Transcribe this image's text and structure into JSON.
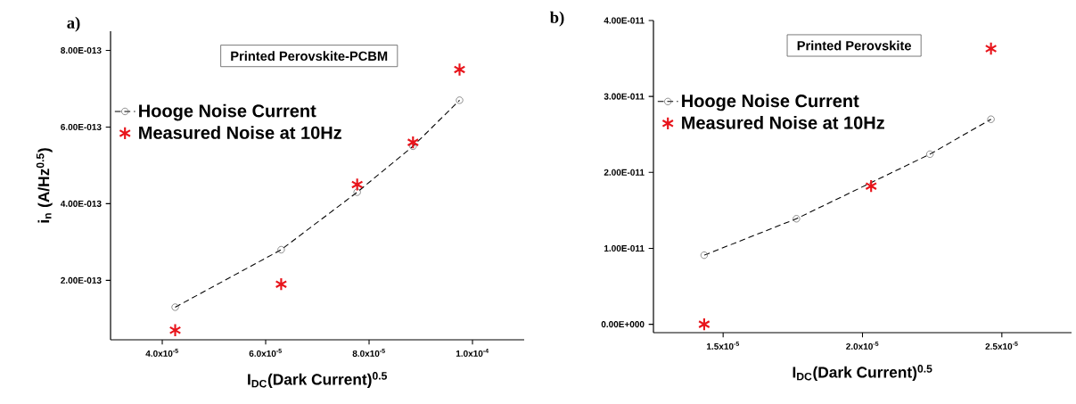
{
  "chart_data": [
    {
      "type": "scatter",
      "title": "Printed Perovskite-PCBM",
      "xlabel": "I$_{DC}$(Dark Current)$^{0.5}$",
      "ylabel": "i$_{n}$ (A/Hz$^{0.5}$)",
      "annotations": [
        "a)"
      ],
      "legend": "top left",
      "xlim": [
        3e-05,
        0.00011
      ],
      "ylim": [
        4.5e-14,
        8.5e-13
      ],
      "xticks": [
        {
          "value": 4e-05,
          "label": "4.0x10$^{-5}$"
        },
        {
          "value": 6e-05,
          "label": "6.0x10$^{-5}$"
        },
        {
          "value": 8e-05,
          "label": "8.0x10$^{-5}$"
        },
        {
          "value": 0.0001,
          "label": "1.0x10$^{-4}$"
        }
      ],
      "yticks": [
        {
          "value": 2e-13,
          "label": "2.00E-013"
        },
        {
          "value": 4e-13,
          "label": "4.00E-013"
        },
        {
          "value": 6e-13,
          "label": "6.00E-013"
        },
        {
          "value": 8e-13,
          "label": "8.00E-013"
        }
      ],
      "series": [
        {
          "name": "Hooge Noise Current",
          "type": "line",
          "color": "#000000",
          "marker": "circle",
          "line_style": "dashed",
          "x": [
            4.25e-05,
            6.3e-05,
            7.77e-05,
            8.85e-05,
            9.75e-05
          ],
          "values": [
            1.3e-13,
            2.8e-13,
            4.3e-13,
            5.5e-13,
            6.7e-13
          ]
        },
        {
          "name": "Measured Noise at 10Hz",
          "color": "#e8141b",
          "marker": "cross",
          "x": [
            4.25e-05,
            6.3e-05,
            7.77e-05,
            8.85e-05,
            9.75e-05
          ],
          "values": [
            7e-14,
            1.9e-13,
            4.5e-13,
            5.6e-13,
            7.5e-13
          ]
        }
      ]
    },
    {
      "type": "scatter",
      "title": "Printed Perovskite",
      "xlabel": "I$_{DC}$(Dark Current)$^{0.5}$",
      "annotations": [
        "b)"
      ],
      "legend": "top left",
      "xlim": [
        1.25e-05,
        2.75e-05
      ],
      "ylim": [
        -1.1e-12,
        4e-11
      ],
      "xticks": [
        {
          "value": 1.5e-05,
          "label": "1.5x10$^{-5}$"
        },
        {
          "value": 2e-05,
          "label": "2.0x10$^{-5}$"
        },
        {
          "value": 2.5e-05,
          "label": "2.5x10$^{-5}$"
        }
      ],
      "yticks": [
        {
          "value": 0,
          "label": "0.00E+000"
        },
        {
          "value": 1e-11,
          "label": "1.00E-011"
        },
        {
          "value": 2e-11,
          "label": "2.00E-011"
        },
        {
          "value": 3e-11,
          "label": "3.00E-011"
        },
        {
          "value": 4e-11,
          "label": "4.00E-011"
        }
      ],
      "series": [
        {
          "name": "Hooge Noise Current",
          "type": "line",
          "color": "#000000",
          "marker": "circle",
          "line_style": "dashed",
          "x": [
            1.432e-05,
            1.763e-05,
            2.242e-05,
            2.461e-05
          ],
          "values": [
            9.1e-12,
            1.39e-11,
            2.24e-11,
            2.7e-11
          ]
        },
        {
          "name": "Measured Noise at 10Hz",
          "color": "#e8141b",
          "marker": "cross",
          "x": [
            1.432e-05,
            2.031e-05,
            2.461e-05
          ],
          "values": [
            0,
            1.82e-11,
            3.63e-11
          ]
        }
      ]
    }
  ]
}
